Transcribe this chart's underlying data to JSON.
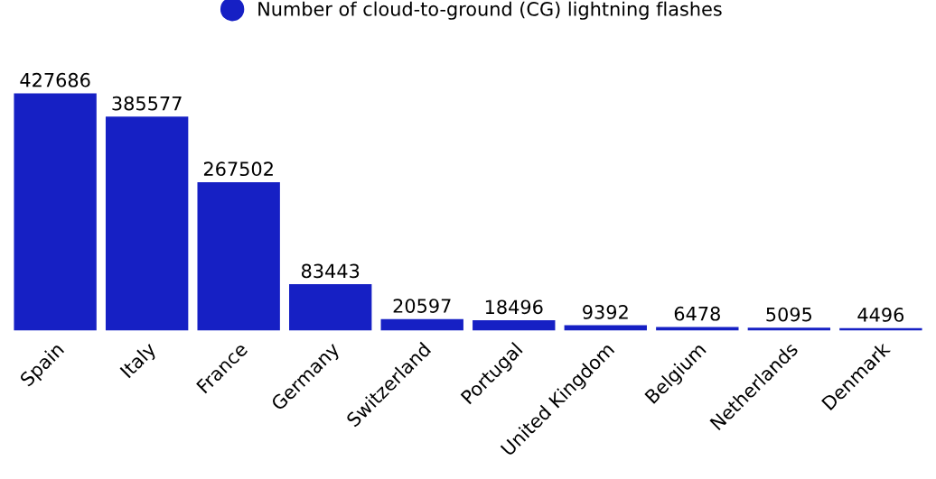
{
  "chart_data": {
    "type": "bar",
    "categories": [
      "Spain",
      "Italy",
      "France",
      "Germany",
      "Switzerland",
      "Portugal",
      "United Kingdom",
      "Belgium",
      "Netherlands",
      "Denmark"
    ],
    "series": [
      {
        "name": "Number of cloud-to-ground (CG) lightning flashes",
        "color": "#1620c4",
        "values": [
          427686,
          385577,
          267502,
          83443,
          20597,
          18496,
          9392,
          6478,
          5095,
          4496
        ]
      }
    ],
    "data_labels": true,
    "legend": "top",
    "grid": false
  }
}
